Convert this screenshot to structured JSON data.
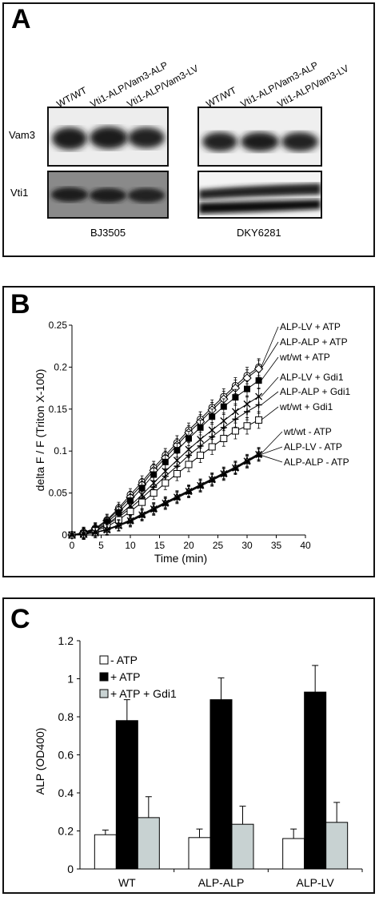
{
  "panel_a": {
    "letter": "A",
    "lane_labels": [
      "WT/WT",
      "Vti1-ALP/Vam3-ALP",
      "Vti1-ALP/Vam3-LV"
    ],
    "row_labels": [
      "Vam3",
      "Vti1"
    ],
    "strains": [
      "BJ3505",
      "DKY6281"
    ]
  },
  "panel_b": {
    "letter": "B",
    "chart_data": {
      "type": "line",
      "ylabel": "delta F / F (Triton X-100)",
      "xlabel": "Time (min)",
      "xlim": [
        0,
        40
      ],
      "ylim": [
        0,
        0.25
      ],
      "xticks": [
        "0",
        "5",
        "10",
        "15",
        "20",
        "25",
        "30",
        "35",
        "40"
      ],
      "yticks": [
        "0",
        "0.05",
        "0.1",
        "0.15",
        "0.2",
        "0.25"
      ],
      "x": [
        0,
        2,
        4,
        6,
        8,
        10,
        12,
        14,
        16,
        18,
        20,
        22,
        24,
        26,
        28,
        30,
        32
      ],
      "series": [
        {
          "name": "ALP-LV + ATP",
          "marker": "circle-open",
          "values": [
            0,
            0.003,
            0.008,
            0.018,
            0.032,
            0.048,
            0.063,
            0.08,
            0.095,
            0.11,
            0.125,
            0.138,
            0.152,
            0.165,
            0.178,
            0.19,
            0.2
          ]
        },
        {
          "name": "ALP-ALP + ATP",
          "marker": "diamond-open",
          "values": [
            0,
            0.003,
            0.008,
            0.017,
            0.03,
            0.045,
            0.06,
            0.077,
            0.092,
            0.107,
            0.122,
            0.135,
            0.149,
            0.162,
            0.175,
            0.187,
            0.198
          ]
        },
        {
          "name": "wt/wt + ATP",
          "marker": "square-filled",
          "values": [
            0,
            0.002,
            0.007,
            0.015,
            0.027,
            0.041,
            0.056,
            0.072,
            0.087,
            0.101,
            0.115,
            0.128,
            0.141,
            0.153,
            0.164,
            0.174,
            0.184
          ]
        },
        {
          "name": "ALP-LV + Gdi1",
          "marker": "x",
          "values": [
            0,
            0.002,
            0.006,
            0.013,
            0.023,
            0.035,
            0.048,
            0.062,
            0.076,
            0.089,
            0.102,
            0.114,
            0.125,
            0.136,
            0.147,
            0.156,
            0.165
          ]
        },
        {
          "name": "ALP-ALP + Gdi1",
          "marker": "plus",
          "values": [
            0,
            0.002,
            0.006,
            0.012,
            0.021,
            0.032,
            0.044,
            0.057,
            0.07,
            0.082,
            0.095,
            0.106,
            0.117,
            0.128,
            0.138,
            0.147,
            0.155
          ]
        },
        {
          "name": "wt/wt + Gdi1",
          "marker": "square-open",
          "values": [
            0,
            0.001,
            0.005,
            0.01,
            0.018,
            0.028,
            0.039,
            0.05,
            0.062,
            0.073,
            0.084,
            0.095,
            0.105,
            0.115,
            0.124,
            0.13,
            0.137
          ]
        },
        {
          "name": "wt/wt - ATP",
          "marker": "triangle-open",
          "values": [
            0,
            0.001,
            0.003,
            0.007,
            0.012,
            0.018,
            0.025,
            0.032,
            0.039,
            0.046,
            0.053,
            0.06,
            0.067,
            0.074,
            0.081,
            0.089,
            0.097
          ]
        },
        {
          "name": "ALP-LV - ATP",
          "marker": "x",
          "values": [
            0,
            0.001,
            0.003,
            0.006,
            0.011,
            0.017,
            0.024,
            0.031,
            0.038,
            0.045,
            0.052,
            0.059,
            0.066,
            0.073,
            0.08,
            0.088,
            0.096
          ]
        },
        {
          "name": "ALP-ALP - ATP",
          "marker": "asterisk",
          "values": [
            0,
            0.001,
            0.003,
            0.006,
            0.011,
            0.016,
            0.023,
            0.03,
            0.037,
            0.044,
            0.051,
            0.058,
            0.065,
            0.072,
            0.079,
            0.087,
            0.095
          ]
        }
      ],
      "legend": "line-end labels, right"
    }
  },
  "panel_c": {
    "letter": "C",
    "chart_data": {
      "type": "bar",
      "ylabel": "ALP (OD400)",
      "categories": [
        "WT",
        "ALP-ALP",
        "ALP-LV"
      ],
      "ylim": [
        0,
        1.2
      ],
      "yticks": [
        "0",
        "0.2",
        "0.4",
        "0.6",
        "0.8",
        "1",
        "1.2"
      ],
      "series": [
        {
          "name": "- ATP",
          "color": "#ffffff",
          "values": [
            0.18,
            0.165,
            0.16
          ],
          "errors": [
            0.025,
            0.045,
            0.05
          ]
        },
        {
          "name": "+ ATP",
          "color": "#000000",
          "values": [
            0.78,
            0.89,
            0.93
          ],
          "errors": [
            0.11,
            0.115,
            0.14
          ]
        },
        {
          "name": "+ ATP + Gdi1",
          "color": "#c8d2d2",
          "values": [
            0.27,
            0.235,
            0.245
          ],
          "errors": [
            0.11,
            0.095,
            0.105
          ]
        }
      ],
      "legend": "top-left",
      "grid": false
    }
  }
}
